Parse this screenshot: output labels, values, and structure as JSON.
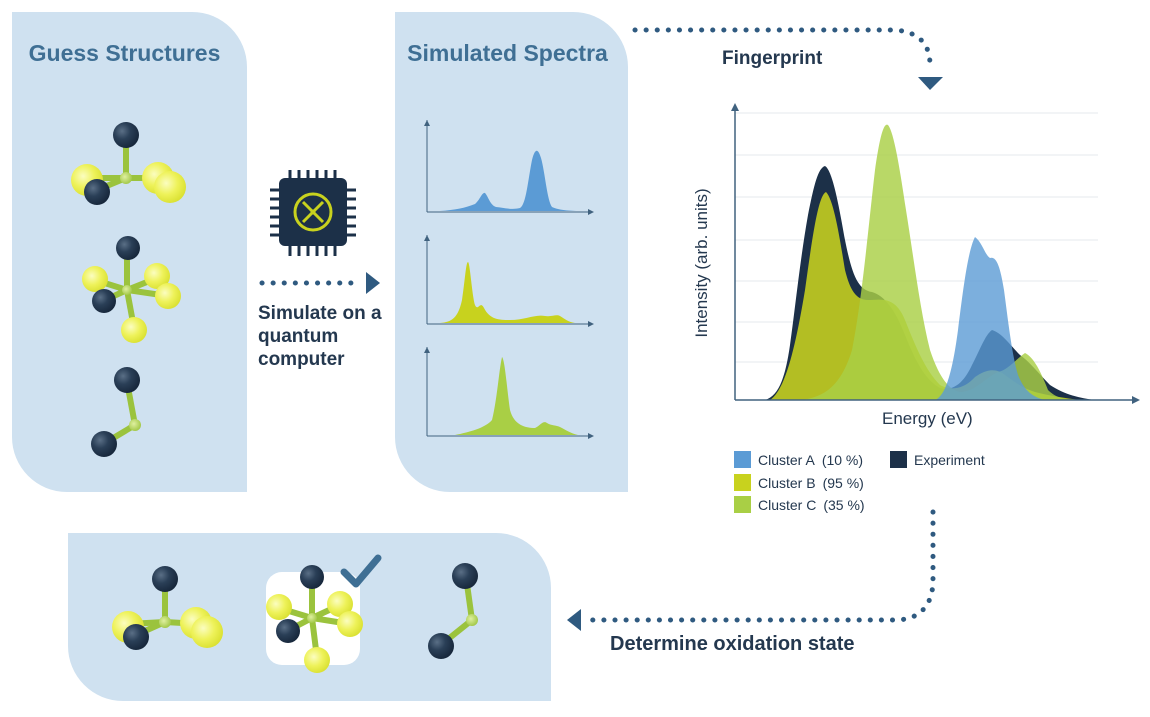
{
  "panels": {
    "guess": {
      "title": "Guess Structures"
    },
    "simulated": {
      "title": "Simulated Spectra"
    }
  },
  "labels": {
    "simulate_quantum": "Simulate on a quantum computer",
    "fingerprint": "Fingerprint",
    "determine_oxidation": "Determine oxidation state"
  },
  "chart": {
    "xlabel": "Energy (eV)",
    "ylabel": "Intensity (arb. units)"
  },
  "legend": [
    {
      "name": "Cluster A",
      "pct": "(10 %)",
      "color": "#5b9bd5"
    },
    {
      "name": "Cluster B",
      "pct": "(95 %)",
      "color": "#c8d21e"
    },
    {
      "name": "Cluster C",
      "pct": "(35 %)",
      "color": "#a9cf45"
    },
    {
      "name": "Experiment",
      "pct": "",
      "color": "#1c3048"
    }
  ],
  "colors": {
    "panel": "#cfe1f0",
    "navy": "#1c3048",
    "title_blue": "#3f6f94",
    "yellow_atom": "#e5ec4a",
    "green_bond": "#9bc33d",
    "arrow": "#2f5a80"
  },
  "icons": {
    "chip": "quantum-chip-icon",
    "check": "checkmark-icon"
  }
}
